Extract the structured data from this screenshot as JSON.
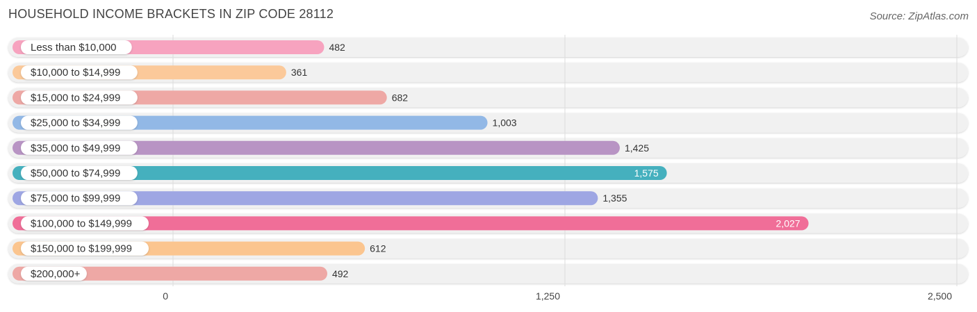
{
  "title": "HOUSEHOLD INCOME BRACKETS IN ZIP CODE 28112",
  "source": "Source: ZipAtlas.com",
  "chart_data": {
    "type": "bar",
    "orientation": "horizontal",
    "title": "HOUSEHOLD INCOME BRACKETS IN ZIP CODE 28112",
    "categories": [
      "Less than $10,000",
      "$10,000 to $14,999",
      "$15,000 to $24,999",
      "$25,000 to $34,999",
      "$35,000 to $49,999",
      "$50,000 to $74,999",
      "$75,000 to $99,999",
      "$100,000 to $149,999",
      "$150,000 to $199,999",
      "$200,000+"
    ],
    "values": [
      482,
      361,
      682,
      1003,
      1425,
      1575,
      1355,
      2027,
      612,
      492
    ],
    "value_labels": [
      "482",
      "361",
      "682",
      "1,003",
      "1,425",
      "1,575",
      "1,355",
      "2,027",
      "612",
      "492"
    ],
    "colors": [
      "#f7a3bf",
      "#fbc99a",
      "#eea8a5",
      "#92b8e6",
      "#b894c4",
      "#45b0be",
      "#9ea6e3",
      "#f06e98",
      "#fbc58f",
      "#eea8a5"
    ],
    "label_inside": [
      false,
      false,
      false,
      false,
      false,
      true,
      false,
      true,
      false,
      false
    ],
    "xlim": [
      0,
      2500
    ],
    "ticks": [
      0,
      1250,
      2500
    ],
    "tick_labels": [
      "0",
      "1,250",
      "2,500"
    ],
    "grid": true
  }
}
